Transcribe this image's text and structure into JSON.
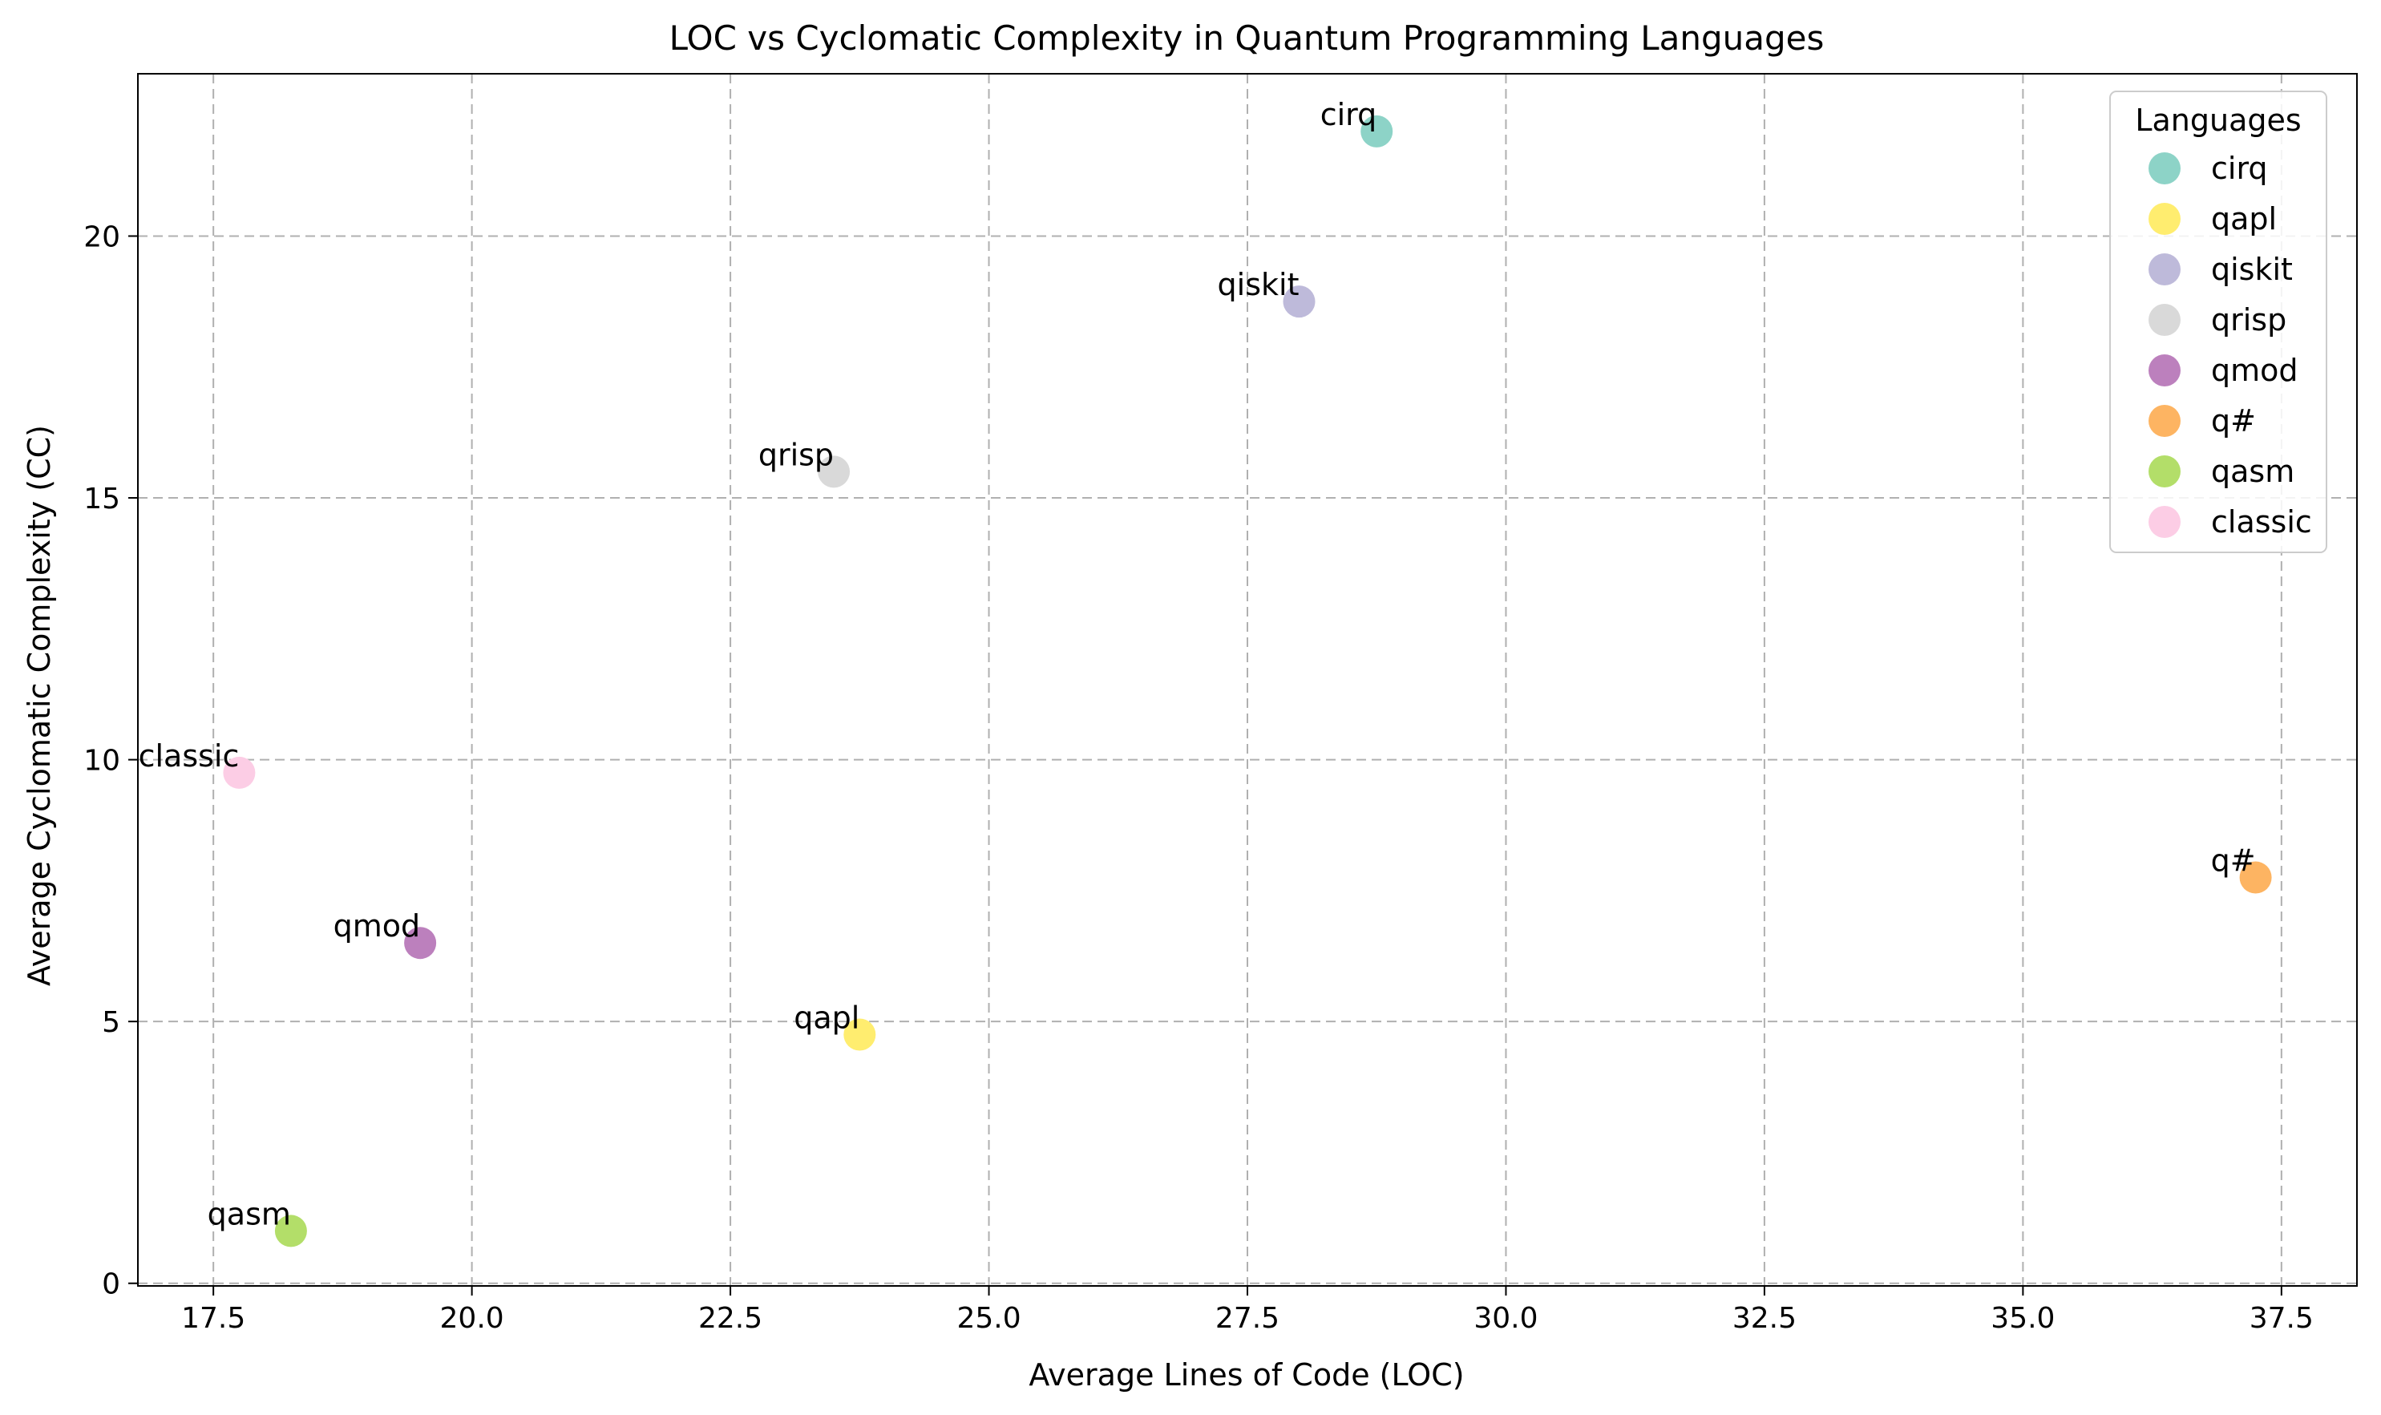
{
  "chart_data": {
    "type": "scatter",
    "title": "LOC vs Cyclomatic Complexity in Quantum Programming Languages",
    "xlabel": "Average Lines of Code (LOC)",
    "ylabel": "Average Cyclomatic Complexity (CC)",
    "xlim": [
      16.77,
      38.23
    ],
    "ylim": [
      -0.05,
      23.1
    ],
    "xticks": [
      17.5,
      20.0,
      22.5,
      25.0,
      27.5,
      30.0,
      32.5,
      35.0,
      37.5
    ],
    "xtick_labels": [
      "17.5",
      "20.0",
      "22.5",
      "25.0",
      "27.5",
      "30.0",
      "32.5",
      "35.0",
      "37.5"
    ],
    "yticks": [
      0,
      5,
      10,
      15,
      20
    ],
    "ytick_labels": [
      "0",
      "5",
      "10",
      "15",
      "20"
    ],
    "grid": true,
    "legend": {
      "title": "Languages",
      "placement": "top-right"
    },
    "series": [
      {
        "name": "cirq",
        "color": "#8dd3c7",
        "x": 28.75,
        "y": 22.0,
        "label": "cirq"
      },
      {
        "name": "qapl",
        "color": "#ffed6f",
        "x": 23.75,
        "y": 4.75,
        "label": "qapl"
      },
      {
        "name": "qiskit",
        "color": "#bebada",
        "x": 28.0,
        "y": 18.75,
        "label": "qiskit"
      },
      {
        "name": "qrisp",
        "color": "#d9d9d9",
        "x": 23.5,
        "y": 15.5,
        "label": "qrisp"
      },
      {
        "name": "qmod",
        "color": "#bc80bd",
        "x": 19.5,
        "y": 6.5,
        "label": "qmod"
      },
      {
        "name": "q#",
        "color": "#fdb462",
        "x": 37.25,
        "y": 7.75,
        "label": "q#"
      },
      {
        "name": "qasm",
        "color": "#b3de69",
        "x": 18.25,
        "y": 1.0,
        "label": "qasm"
      },
      {
        "name": "classic",
        "color": "#fccde5",
        "x": 17.75,
        "y": 9.75,
        "label": "classic"
      }
    ]
  }
}
